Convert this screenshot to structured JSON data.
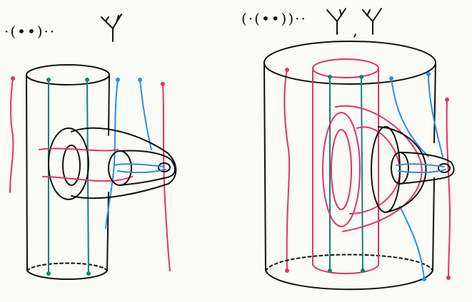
{
  "left_panel": {
    "label": "·(••)··",
    "tree_symbol": "tree-icon"
  },
  "right_panel": {
    "label": "(·(••))··",
    "tree_symbols": [
      "tree-icon",
      "tree-icon"
    ],
    "separator": ","
  },
  "colors": {
    "ink": "#111111",
    "pink": "#e0336f",
    "blue": "#2f8fd8",
    "teal": "#1a8070"
  }
}
